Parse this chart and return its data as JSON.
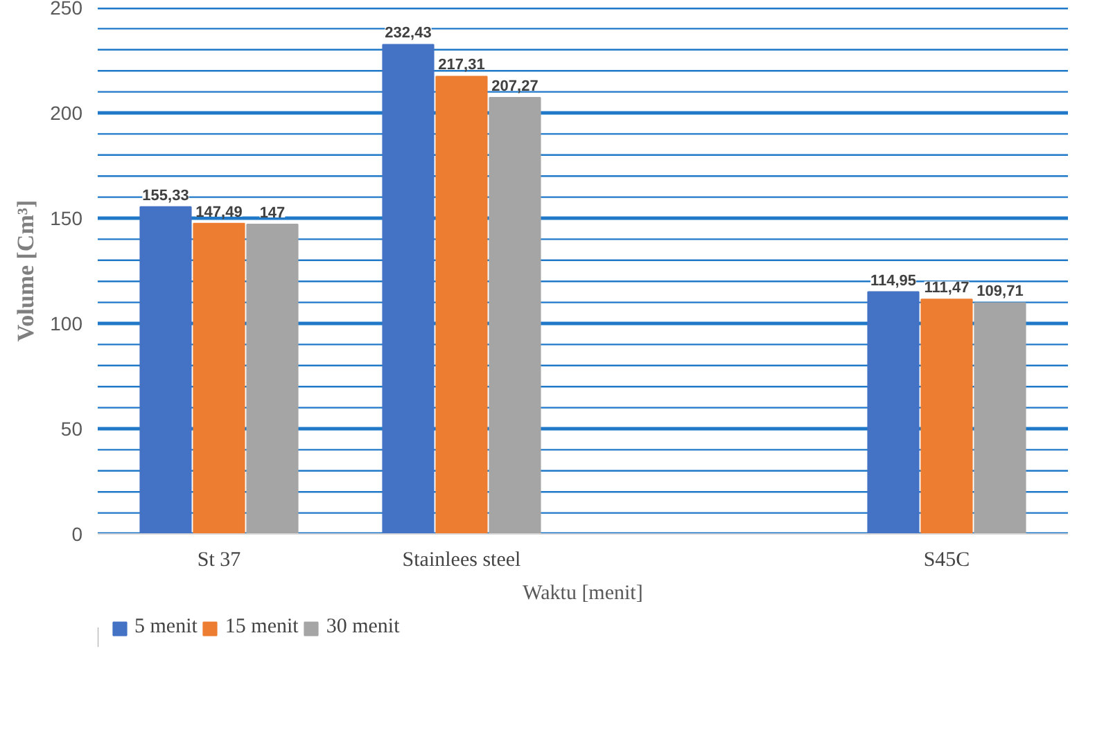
{
  "chart_data": {
    "type": "bar",
    "xlabel": "Waktu [menit]",
    "ylabel": "Volume [Cm³]",
    "categories": [
      "St 37",
      "Stainlees steel",
      null,
      "S45C"
    ],
    "series": [
      {
        "name": "5 menit",
        "color": "#4472c4",
        "values": [
          155.33,
          232.43,
          null,
          114.95
        ],
        "value_labels": [
          "155,33",
          "232,43",
          null,
          "114,95"
        ]
      },
      {
        "name": "15 menit",
        "color": "#ed7d31",
        "values": [
          147.49,
          217.31,
          null,
          111.47
        ],
        "value_labels": [
          "147,49",
          "217,31",
          null,
          "111,47"
        ]
      },
      {
        "name": "30 menit",
        "color": "#a5a5a5",
        "values": [
          147,
          207.27,
          null,
          109.71
        ],
        "value_labels": [
          "147",
          "207,27",
          null,
          "109,71"
        ]
      }
    ],
    "ylim": [
      0,
      250
    ],
    "yticks": [
      0,
      {
        "value": 10,
        "label": null
      },
      {
        "value": 20,
        "label": null
      },
      {
        "value": 30,
        "label": null
      },
      {
        "value": 40,
        "label": null
      },
      50,
      {
        "value": 60,
        "label": null
      },
      {
        "value": 70,
        "label": null
      },
      {
        "value": 80,
        "label": null
      },
      {
        "value": 90,
        "label": null
      },
      100,
      {
        "value": 110,
        "label": null
      },
      {
        "value": 120,
        "label": null
      },
      {
        "value": 130,
        "label": null
      },
      {
        "value": 140,
        "label": null
      },
      150,
      {
        "value": 160,
        "label": null
      },
      {
        "value": 170,
        "label": null
      },
      {
        "value": 180,
        "label": null
      },
      {
        "value": 190,
        "label": null
      },
      200,
      {
        "value": 210,
        "label": null
      },
      {
        "value": 220,
        "label": null
      },
      {
        "value": 230,
        "label": null
      },
      {
        "value": 240,
        "label": null
      },
      250
    ],
    "grid": true,
    "legend": "bottom left"
  }
}
